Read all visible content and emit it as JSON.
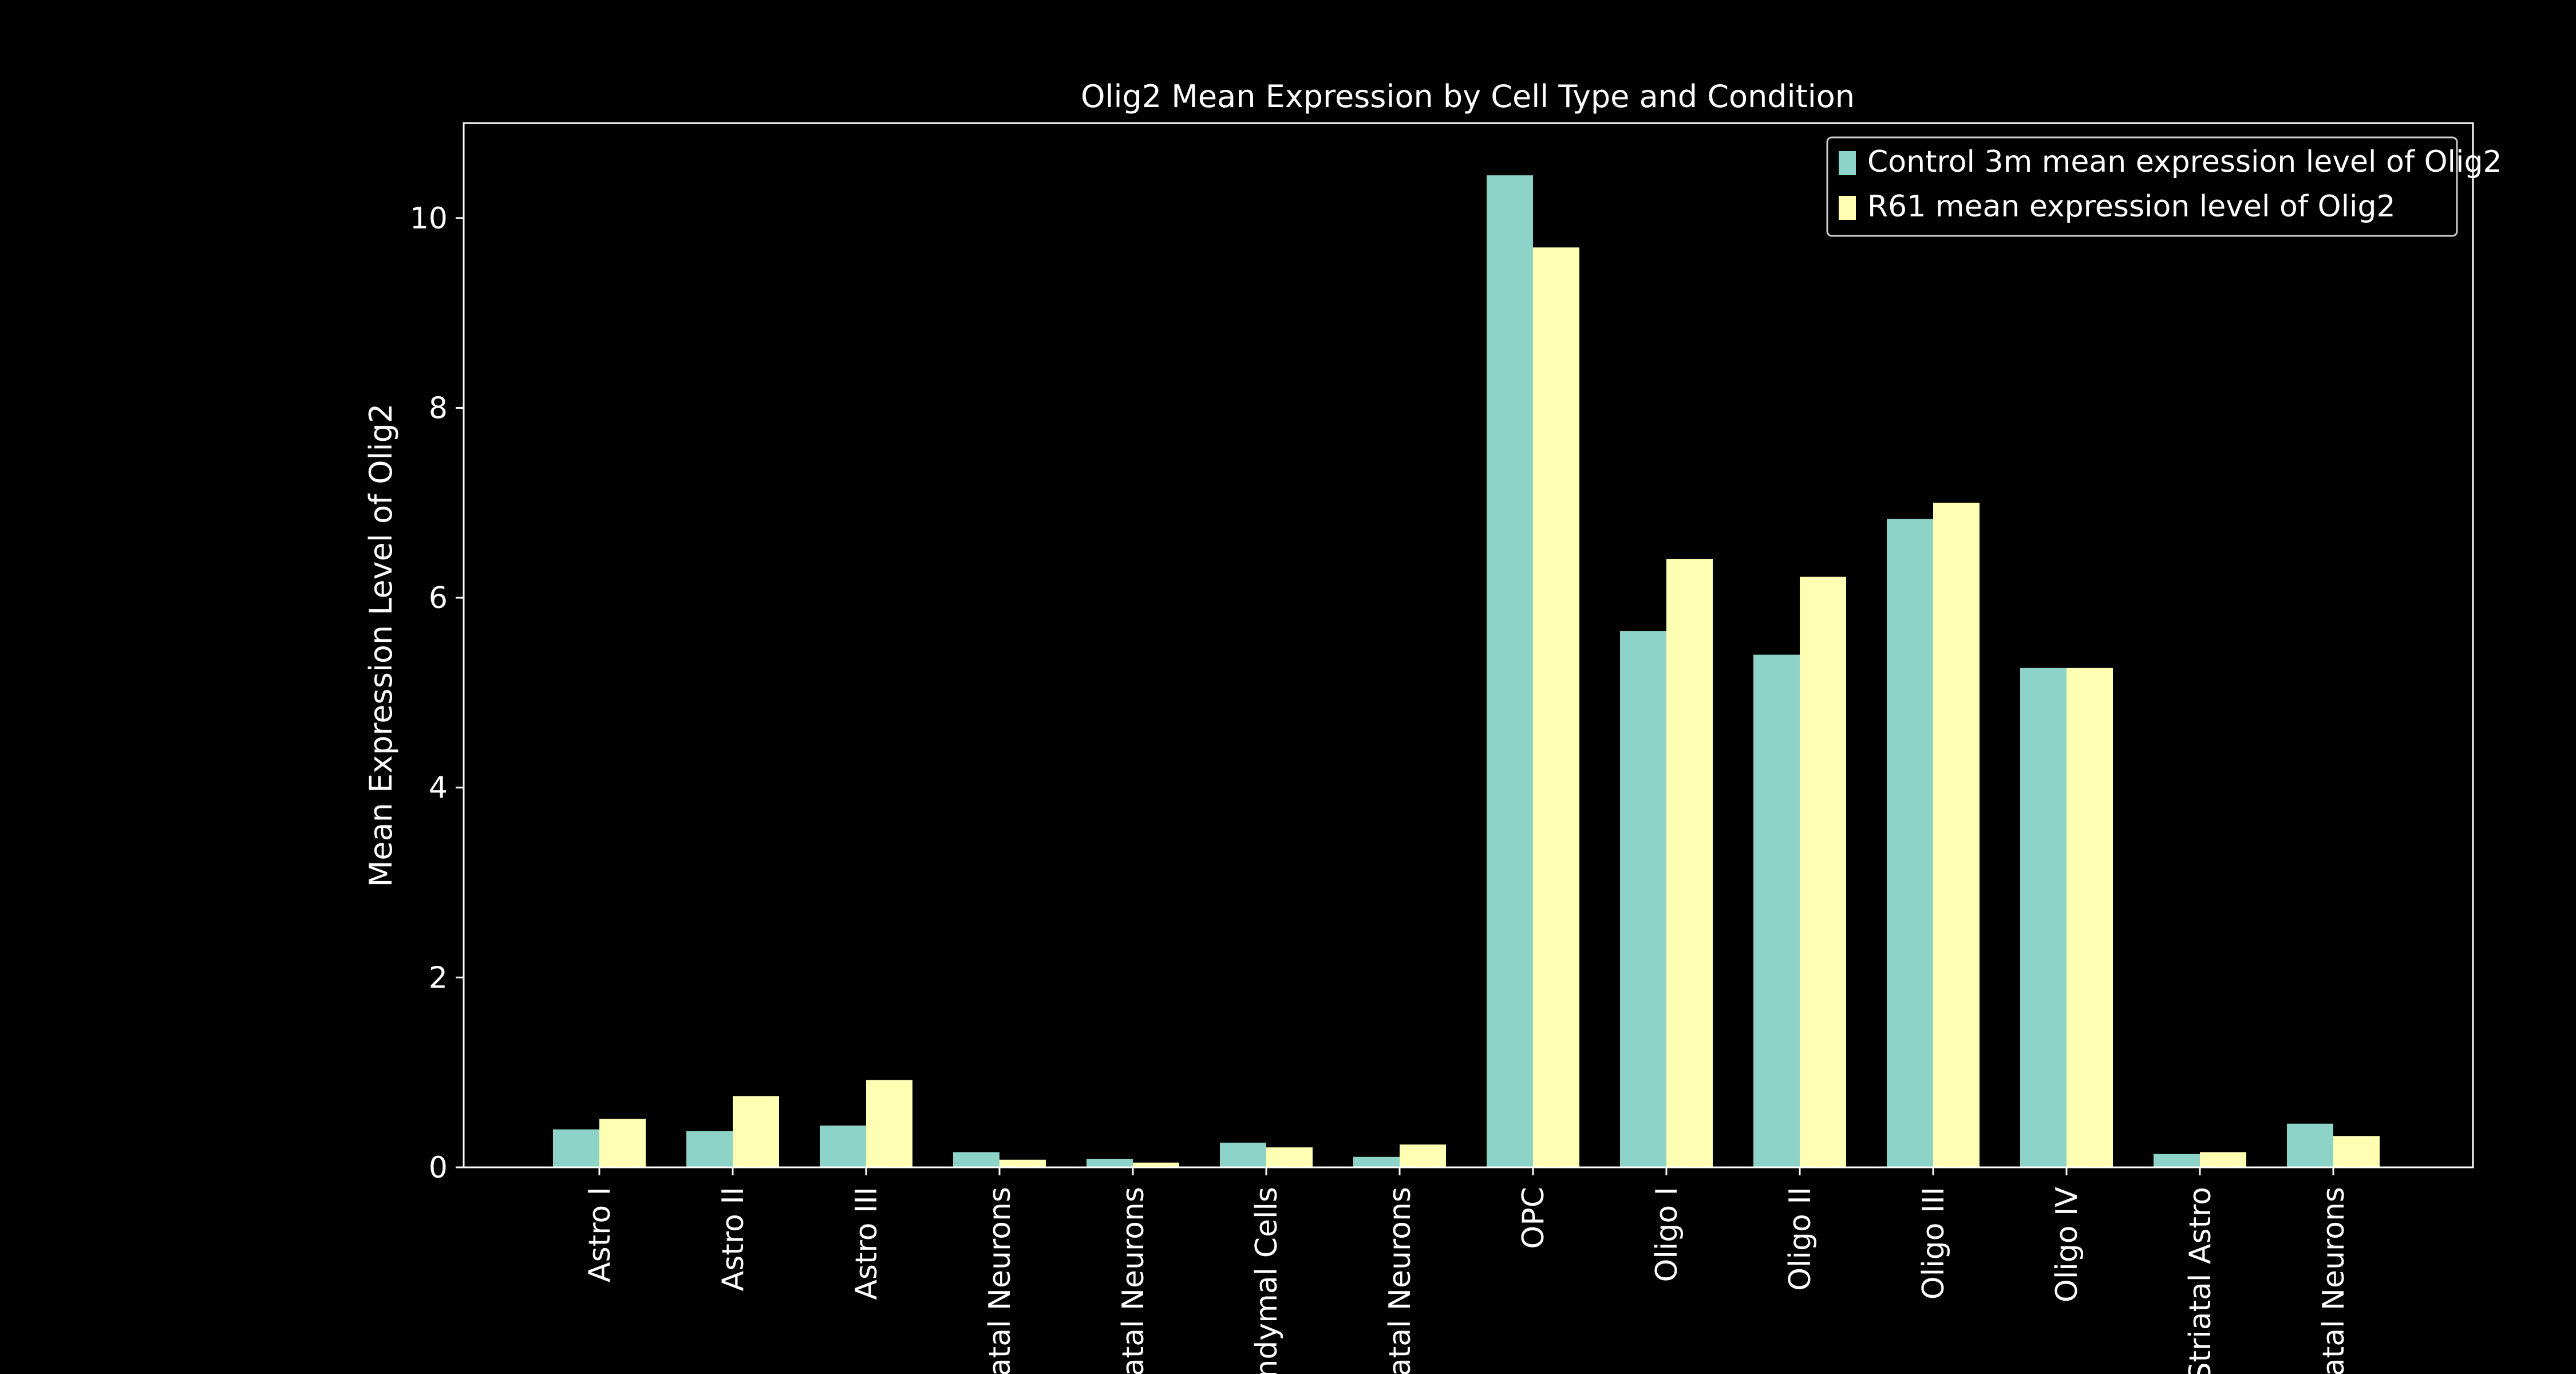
{
  "chart_data": {
    "type": "bar",
    "title": "Olig2 Mean Expression by Cell Type and Condition",
    "xlabel": "",
    "ylabel": "Mean Expression Level of Olig2",
    "ylim": [
      0,
      11
    ],
    "yticks": [
      0,
      2,
      4,
      6,
      8,
      10
    ],
    "grid": false,
    "legend_position": "top-right",
    "categories": [
      "Astro I",
      "Astro II",
      "Astro III",
      "atal Neurons",
      "atal Neurons",
      "ndymal Cells",
      "atal Neurons",
      "OPC",
      "Oligo I",
      "Oligo II",
      "Oligo III",
      "Oligo IV",
      "Striatal Astro",
      "atal Neurons"
    ],
    "series": [
      {
        "name": "Control 3m mean expression level of Olig2",
        "color": "#8dd3c7",
        "values": [
          0.4,
          0.38,
          0.44,
          0.16,
          0.09,
          0.26,
          0.11,
          10.45,
          5.65,
          5.4,
          6.83,
          5.26,
          0.14,
          0.46
        ]
      },
      {
        "name": "R61 mean expression level of Olig2",
        "color": "#ffffb3",
        "values": [
          0.51,
          0.75,
          0.92,
          0.08,
          0.05,
          0.21,
          0.24,
          9.69,
          6.41,
          6.22,
          7.0,
          5.26,
          0.16,
          0.33
        ]
      }
    ]
  }
}
